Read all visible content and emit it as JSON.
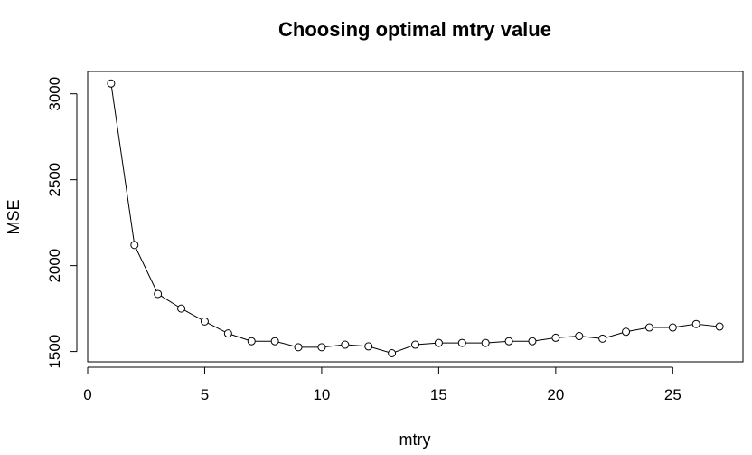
{
  "chart_data": {
    "type": "line",
    "title": "Choosing optimal mtry value",
    "xlabel": "mtry",
    "ylabel": "MSE",
    "x": [
      1,
      2,
      3,
      4,
      5,
      6,
      7,
      8,
      9,
      10,
      11,
      12,
      13,
      14,
      15,
      16,
      17,
      18,
      19,
      20,
      21,
      22,
      23,
      24,
      25,
      26,
      27
    ],
    "series": [
      {
        "values": [
          3060,
          2120,
          1835,
          1750,
          1675,
          1605,
          1560,
          1560,
          1525,
          1525,
          1540,
          1530,
          1490,
          1540,
          1550,
          1550,
          1550,
          1560,
          1560,
          1580,
          1590,
          1575,
          1615,
          1640,
          1640,
          1660,
          1645
        ]
      }
    ],
    "xlim": [
      0,
      28
    ],
    "ylim": [
      1440,
      3130
    ],
    "x_ticks": [
      0,
      5,
      10,
      15,
      20,
      25
    ],
    "y_ticks": [
      1500,
      2000,
      2500,
      3000
    ],
    "grid": false,
    "legend": "none",
    "marker": "open-circle",
    "line_color": "#000000"
  }
}
